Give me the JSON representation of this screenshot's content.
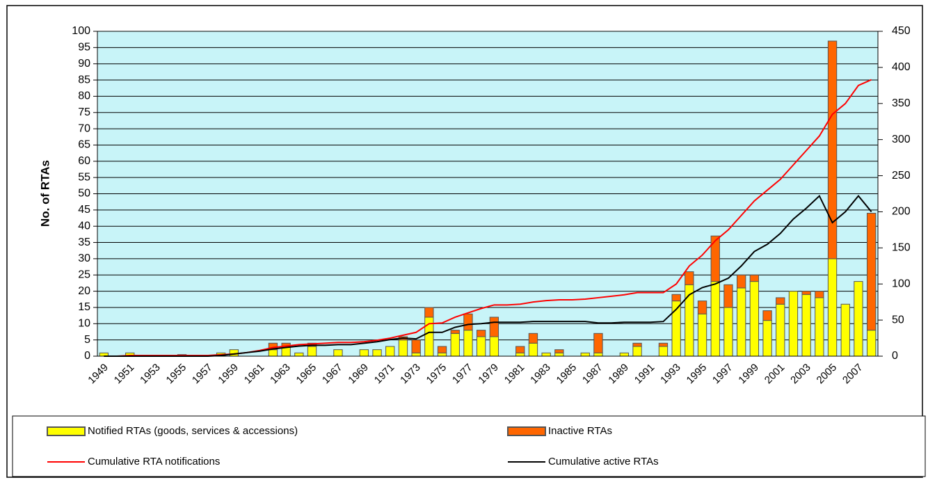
{
  "chart_data": {
    "type": "bar",
    "y_label": "No. of RTAs",
    "categories": [
      "1949",
      null,
      "1951",
      null,
      "1953",
      null,
      "1955",
      null,
      "1957",
      null,
      "1959",
      null,
      "1961",
      null,
      "1963",
      null,
      "1965",
      null,
      "1967",
      null,
      "1969",
      null,
      "1971",
      null,
      "1973",
      null,
      "1975",
      null,
      "1977",
      null,
      "1979",
      null,
      "1981",
      null,
      "1983",
      null,
      "1985",
      null,
      "1987",
      null,
      "1989",
      null,
      "1991",
      null,
      "1993",
      null,
      "1995",
      null,
      "1997",
      null,
      "1999",
      null,
      "2001",
      null,
      "2003",
      null,
      "2005",
      null,
      "2007",
      null
    ],
    "series": [
      {
        "name": "Notified RTAs (goods, services & accessions)",
        "type": "bar",
        "color": "#ffff00",
        "values": [
          1,
          0,
          1,
          0,
          0,
          0,
          0.5,
          0,
          0,
          1,
          2,
          0,
          0,
          2,
          3,
          1,
          3,
          0,
          2,
          0,
          2,
          2,
          3,
          5,
          1,
          12,
          1,
          7,
          8,
          6,
          6,
          0,
          1,
          4,
          1,
          1,
          0,
          1,
          1,
          0,
          1,
          3,
          0,
          3,
          17,
          22,
          13,
          23,
          15,
          21,
          23,
          11,
          16,
          20,
          19,
          18,
          30,
          16,
          23,
          8
        ]
      },
      {
        "name": "Inactive RTAs",
        "type": "bar",
        "color": "#ff6600",
        "values": [
          0,
          0,
          0,
          0,
          0,
          0,
          0,
          0,
          0,
          0,
          0,
          0,
          0,
          2,
          1,
          0,
          1,
          0,
          0,
          0,
          0,
          0,
          0,
          1,
          4,
          3,
          2,
          1,
          5,
          2,
          6,
          0,
          2,
          3,
          0,
          1,
          0,
          0,
          6,
          0,
          0,
          1,
          0,
          1,
          2,
          4,
          4,
          14,
          7,
          4,
          2,
          3,
          2,
          0,
          1,
          2,
          67,
          0,
          0,
          36
        ]
      },
      {
        "name": "Cumulative RTA notifications",
        "type": "line",
        "axis": "y2",
        "color": "#ff0000",
        "values": [
          0,
          0,
          1,
          1,
          1,
          1,
          1,
          1,
          1,
          2,
          3,
          5,
          8,
          12,
          14,
          16,
          17,
          18,
          19,
          19,
          20,
          22,
          25,
          29,
          33,
          45,
          46,
          54,
          60,
          66,
          71,
          71,
          72,
          75,
          77,
          78,
          78,
          79,
          81,
          83,
          85,
          88,
          88,
          88,
          100,
          125,
          140,
          160,
          175,
          195,
          215,
          230,
          245,
          265,
          285,
          305,
          335,
          350,
          375,
          383
        ]
      },
      {
        "name": "Cumulative active RTAs",
        "type": "line",
        "axis": "y2",
        "color": "#000000",
        "values": [
          0,
          0,
          0,
          0,
          0,
          0,
          0,
          0,
          0,
          1,
          3,
          5,
          7,
          10,
          12,
          14,
          15,
          15,
          16,
          16,
          18,
          20,
          23,
          25,
          24,
          33,
          33,
          40,
          44,
          45,
          47,
          47,
          47,
          48,
          48,
          48,
          48,
          48,
          46,
          46,
          47,
          47,
          47,
          48,
          65,
          85,
          95,
          100,
          108,
          125,
          145,
          155,
          170,
          190,
          205,
          222,
          185,
          200,
          222,
          200
        ]
      }
    ],
    "ylim": [
      0,
      100
    ],
    "yticks": [
      0,
      5,
      10,
      15,
      20,
      25,
      30,
      35,
      40,
      45,
      50,
      55,
      60,
      65,
      70,
      75,
      80,
      85,
      90,
      95,
      100
    ],
    "y2lim": [
      0,
      450
    ],
    "y2ticks": [
      0,
      50,
      100,
      150,
      200,
      250,
      300,
      350,
      400,
      450
    ],
    "grid": true,
    "plot_background": "#c8f4f8"
  }
}
